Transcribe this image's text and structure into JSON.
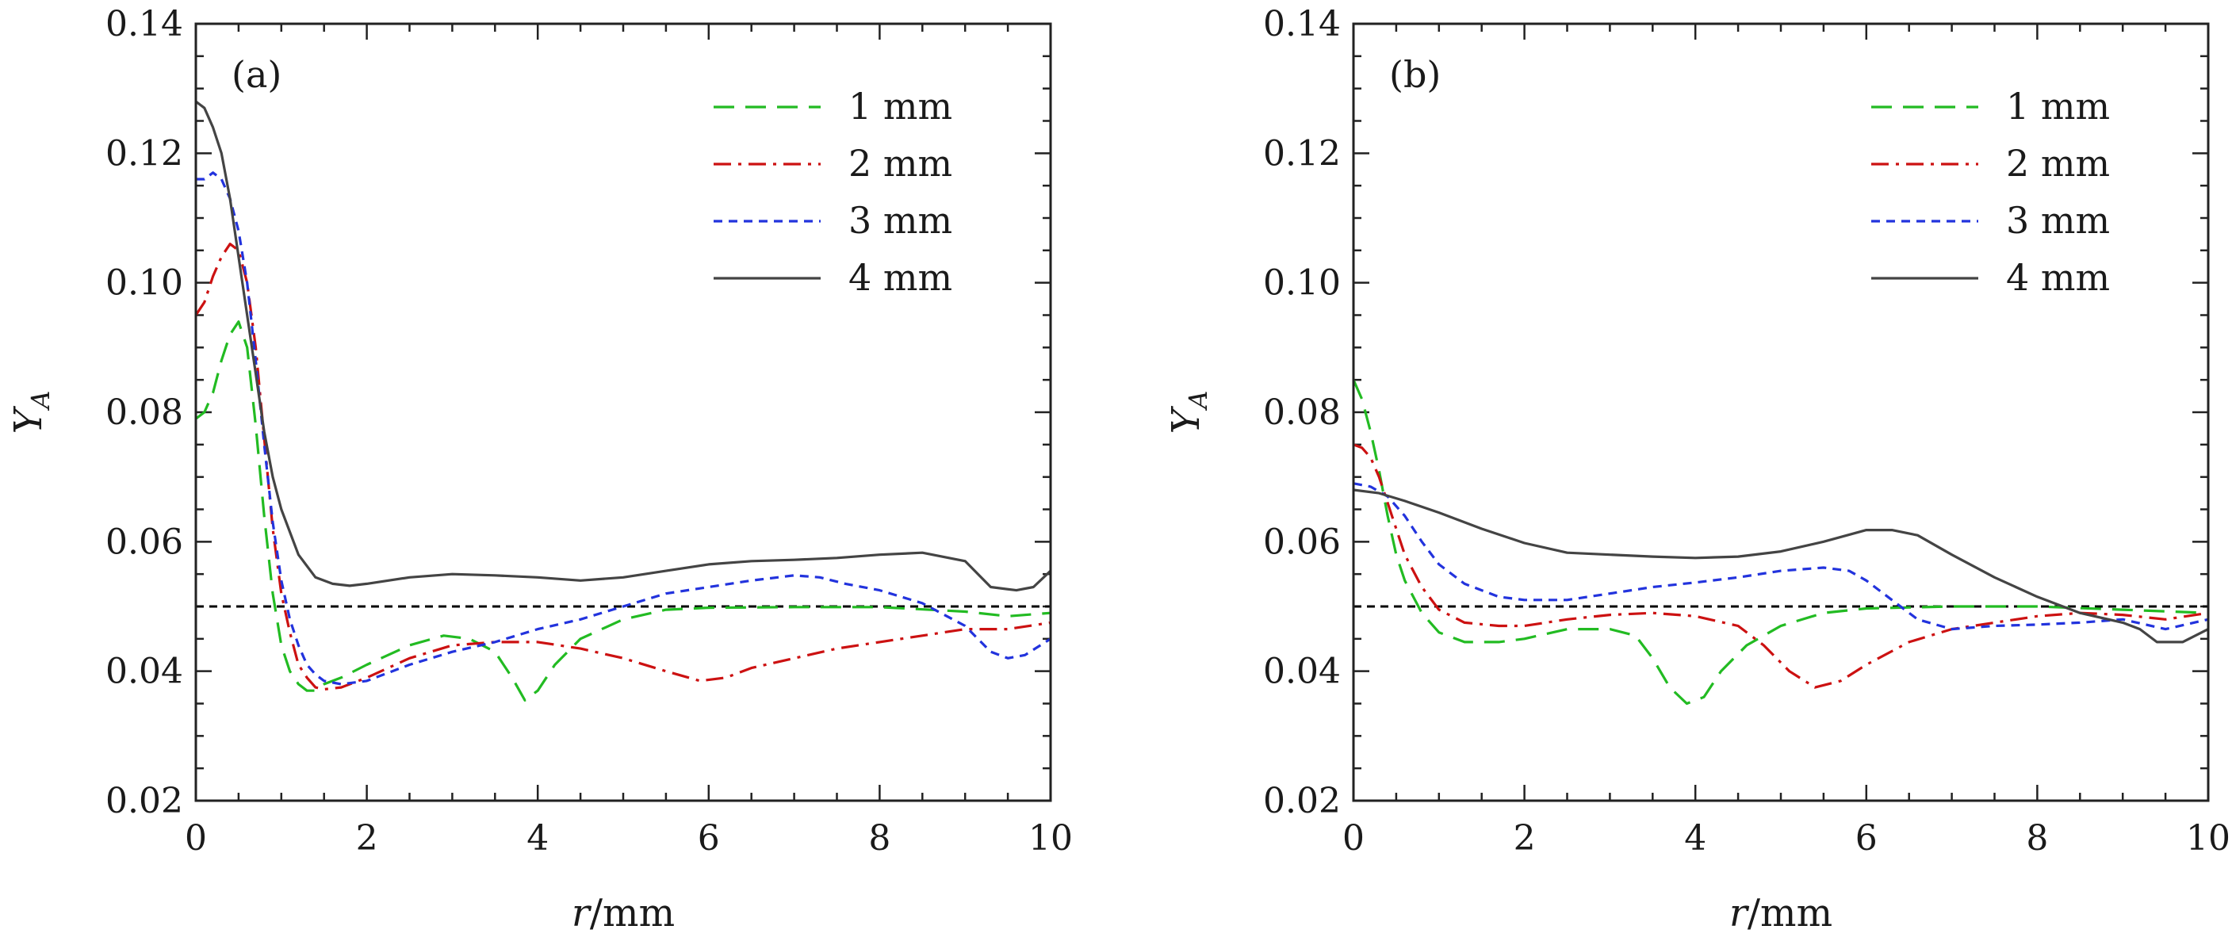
{
  "chart_data": [
    {
      "type": "line",
      "panel_label": "(a)",
      "xlabel_var": "r",
      "xlabel_unit": "/mm",
      "ylabel_var": "Y",
      "ylabel_sub": "A",
      "xlim": [
        0,
        10
      ],
      "ylim": [
        0.02,
        0.14
      ],
      "xticks": [
        "0",
        "2",
        "4",
        "6",
        "8",
        "10"
      ],
      "yticks": [
        "0.02",
        "0.04",
        "0.06",
        "0.08",
        "0.10",
        "0.12",
        "0.14"
      ],
      "legend_position": "top-right",
      "grid": false,
      "reference_line": {
        "y": 0.05,
        "style": "dotted",
        "color": "#000000"
      },
      "series": [
        {
          "name": "1 mm",
          "color": "#22bb22",
          "dash": "dashed",
          "points": [
            [
              0,
              0.079
            ],
            [
              0.1,
              0.08
            ],
            [
              0.2,
              0.083
            ],
            [
              0.3,
              0.088
            ],
            [
              0.4,
              0.092
            ],
            [
              0.5,
              0.094
            ],
            [
              0.6,
              0.09
            ],
            [
              0.7,
              0.078
            ],
            [
              0.8,
              0.064
            ],
            [
              0.9,
              0.052
            ],
            [
              1.0,
              0.044
            ],
            [
              1.1,
              0.04
            ],
            [
              1.2,
              0.038
            ],
            [
              1.3,
              0.037
            ],
            [
              1.4,
              0.037
            ],
            [
              1.5,
              0.038
            ],
            [
              1.7,
              0.039
            ],
            [
              2.0,
              0.041
            ],
            [
              2.5,
              0.044
            ],
            [
              2.9,
              0.0455
            ],
            [
              3.2,
              0.045
            ],
            [
              3.5,
              0.043
            ],
            [
              3.7,
              0.039
            ],
            [
              3.85,
              0.0355
            ],
            [
              4.0,
              0.037
            ],
            [
              4.2,
              0.041
            ],
            [
              4.5,
              0.045
            ],
            [
              5.0,
              0.048
            ],
            [
              5.5,
              0.0495
            ],
            [
              6.0,
              0.0498
            ],
            [
              7.0,
              0.0499
            ],
            [
              8.0,
              0.0499
            ],
            [
              9.0,
              0.0492
            ],
            [
              9.5,
              0.0485
            ],
            [
              10,
              0.049
            ]
          ]
        },
        {
          "name": "2 mm",
          "color": "#cc1111",
          "dash": "dashdot",
          "points": [
            [
              0,
              0.095
            ],
            [
              0.1,
              0.097
            ],
            [
              0.2,
              0.101
            ],
            [
              0.3,
              0.104
            ],
            [
              0.4,
              0.106
            ],
            [
              0.5,
              0.105
            ],
            [
              0.6,
              0.1
            ],
            [
              0.7,
              0.09
            ],
            [
              0.8,
              0.076
            ],
            [
              0.9,
              0.062
            ],
            [
              1.0,
              0.052
            ],
            [
              1.1,
              0.046
            ],
            [
              1.2,
              0.041
            ],
            [
              1.3,
              0.039
            ],
            [
              1.4,
              0.0375
            ],
            [
              1.5,
              0.0372
            ],
            [
              1.7,
              0.0375
            ],
            [
              2.0,
              0.039
            ],
            [
              2.5,
              0.042
            ],
            [
              3.0,
              0.044
            ],
            [
              3.5,
              0.0445
            ],
            [
              4.0,
              0.0445
            ],
            [
              4.5,
              0.0435
            ],
            [
              5.0,
              0.042
            ],
            [
              5.5,
              0.04
            ],
            [
              5.9,
              0.0385
            ],
            [
              6.2,
              0.039
            ],
            [
              6.5,
              0.0405
            ],
            [
              7.0,
              0.042
            ],
            [
              7.5,
              0.0435
            ],
            [
              8.0,
              0.0445
            ],
            [
              8.5,
              0.0455
            ],
            [
              9.0,
              0.0465
            ],
            [
              9.5,
              0.0465
            ],
            [
              10,
              0.0475
            ]
          ]
        },
        {
          "name": "3 mm",
          "color": "#2233dd",
          "dash": "dotted",
          "points": [
            [
              0,
              0.116
            ],
            [
              0.1,
              0.116
            ],
            [
              0.2,
              0.117
            ],
            [
              0.3,
              0.116
            ],
            [
              0.4,
              0.113
            ],
            [
              0.5,
              0.108
            ],
            [
              0.6,
              0.1
            ],
            [
              0.7,
              0.088
            ],
            [
              0.8,
              0.075
            ],
            [
              0.9,
              0.063
            ],
            [
              1.0,
              0.054
            ],
            [
              1.1,
              0.048
            ],
            [
              1.2,
              0.044
            ],
            [
              1.3,
              0.041
            ],
            [
              1.4,
              0.0395
            ],
            [
              1.5,
              0.0385
            ],
            [
              1.7,
              0.038
            ],
            [
              2.0,
              0.0385
            ],
            [
              2.5,
              0.041
            ],
            [
              3.0,
              0.043
            ],
            [
              3.5,
              0.0445
            ],
            [
              4.0,
              0.0465
            ],
            [
              4.5,
              0.048
            ],
            [
              5.0,
              0.05
            ],
            [
              5.5,
              0.052
            ],
            [
              6.0,
              0.053
            ],
            [
              6.5,
              0.054
            ],
            [
              7.0,
              0.0548
            ],
            [
              7.3,
              0.0545
            ],
            [
              7.6,
              0.0535
            ],
            [
              8.0,
              0.0525
            ],
            [
              8.5,
              0.0505
            ],
            [
              9.0,
              0.047
            ],
            [
              9.3,
              0.043
            ],
            [
              9.5,
              0.042
            ],
            [
              9.7,
              0.0425
            ],
            [
              10,
              0.045
            ]
          ]
        },
        {
          "name": "4 mm",
          "color": "#444444",
          "dash": "solid",
          "points": [
            [
              0,
              0.128
            ],
            [
              0.1,
              0.127
            ],
            [
              0.2,
              0.124
            ],
            [
              0.3,
              0.12
            ],
            [
              0.4,
              0.113
            ],
            [
              0.5,
              0.104
            ],
            [
              0.6,
              0.095
            ],
            [
              0.7,
              0.086
            ],
            [
              0.8,
              0.077
            ],
            [
              0.9,
              0.07
            ],
            [
              1.0,
              0.065
            ],
            [
              1.2,
              0.058
            ],
            [
              1.4,
              0.0545
            ],
            [
              1.6,
              0.0535
            ],
            [
              1.8,
              0.0532
            ],
            [
              2.0,
              0.0535
            ],
            [
              2.5,
              0.0545
            ],
            [
              3.0,
              0.055
            ],
            [
              3.5,
              0.0548
            ],
            [
              4.0,
              0.0545
            ],
            [
              4.5,
              0.054
            ],
            [
              5.0,
              0.0545
            ],
            [
              5.5,
              0.0555
            ],
            [
              6.0,
              0.0565
            ],
            [
              6.5,
              0.057
            ],
            [
              7.0,
              0.0572
            ],
            [
              7.5,
              0.0575
            ],
            [
              8.0,
              0.058
            ],
            [
              8.5,
              0.0583
            ],
            [
              9.0,
              0.057
            ],
            [
              9.3,
              0.053
            ],
            [
              9.6,
              0.0525
            ],
            [
              9.8,
              0.053
            ],
            [
              10,
              0.0555
            ]
          ]
        }
      ]
    },
    {
      "type": "line",
      "panel_label": "(b)",
      "xlabel_var": "r",
      "xlabel_unit": "/mm",
      "ylabel_var": "Y",
      "ylabel_sub": "A",
      "xlim": [
        0,
        10
      ],
      "ylim": [
        0.02,
        0.14
      ],
      "xticks": [
        "0",
        "2",
        "4",
        "6",
        "8",
        "10"
      ],
      "yticks": [
        "0.02",
        "0.04",
        "0.06",
        "0.08",
        "0.10",
        "0.12",
        "0.14"
      ],
      "legend_position": "top-right",
      "grid": false,
      "reference_line": {
        "y": 0.05,
        "style": "dotted",
        "color": "#000000"
      },
      "series": [
        {
          "name": "1 mm",
          "color": "#22bb22",
          "dash": "dashed",
          "points": [
            [
              0,
              0.085
            ],
            [
              0.1,
              0.082
            ],
            [
              0.2,
              0.077
            ],
            [
              0.3,
              0.071
            ],
            [
              0.4,
              0.064
            ],
            [
              0.5,
              0.058
            ],
            [
              0.6,
              0.054
            ],
            [
              0.8,
              0.049
            ],
            [
              1.0,
              0.046
            ],
            [
              1.3,
              0.0445
            ],
            [
              1.7,
              0.0445
            ],
            [
              2.0,
              0.045
            ],
            [
              2.5,
              0.0465
            ],
            [
              3.0,
              0.0465
            ],
            [
              3.3,
              0.0455
            ],
            [
              3.5,
              0.042
            ],
            [
              3.7,
              0.0375
            ],
            [
              3.9,
              0.035
            ],
            [
              4.1,
              0.036
            ],
            [
              4.3,
              0.04
            ],
            [
              4.6,
              0.044
            ],
            [
              5.0,
              0.047
            ],
            [
              5.5,
              0.049
            ],
            [
              6.0,
              0.0497
            ],
            [
              7.0,
              0.05
            ],
            [
              8.0,
              0.05
            ],
            [
              9.0,
              0.0495
            ],
            [
              10,
              0.049
            ]
          ]
        },
        {
          "name": "2 mm",
          "color": "#cc1111",
          "dash": "dashdot",
          "points": [
            [
              0,
              0.075
            ],
            [
              0.1,
              0.0745
            ],
            [
              0.2,
              0.073
            ],
            [
              0.3,
              0.07
            ],
            [
              0.4,
              0.066
            ],
            [
              0.5,
              0.062
            ],
            [
              0.6,
              0.058
            ],
            [
              0.8,
              0.053
            ],
            [
              1.0,
              0.0495
            ],
            [
              1.3,
              0.0475
            ],
            [
              1.7,
              0.047
            ],
            [
              2.0,
              0.047
            ],
            [
              2.5,
              0.048
            ],
            [
              3.0,
              0.0487
            ],
            [
              3.5,
              0.049
            ],
            [
              4.0,
              0.0485
            ],
            [
              4.5,
              0.047
            ],
            [
              4.8,
              0.044
            ],
            [
              5.1,
              0.04
            ],
            [
              5.4,
              0.0375
            ],
            [
              5.7,
              0.0385
            ],
            [
              6.0,
              0.041
            ],
            [
              6.5,
              0.0445
            ],
            [
              7.0,
              0.0465
            ],
            [
              7.5,
              0.0475
            ],
            [
              8.0,
              0.0485
            ],
            [
              8.5,
              0.049
            ],
            [
              9.0,
              0.0487
            ],
            [
              9.5,
              0.048
            ],
            [
              10,
              0.049
            ]
          ]
        },
        {
          "name": "3 mm",
          "color": "#2233dd",
          "dash": "dotted",
          "points": [
            [
              0,
              0.069
            ],
            [
              0.2,
              0.0685
            ],
            [
              0.4,
              0.067
            ],
            [
              0.6,
              0.064
            ],
            [
              0.8,
              0.06
            ],
            [
              1.0,
              0.0565
            ],
            [
              1.3,
              0.0535
            ],
            [
              1.7,
              0.0515
            ],
            [
              2.0,
              0.051
            ],
            [
              2.5,
              0.051
            ],
            [
              3.0,
              0.052
            ],
            [
              3.5,
              0.053
            ],
            [
              4.0,
              0.0537
            ],
            [
              4.5,
              0.0545
            ],
            [
              5.0,
              0.0555
            ],
            [
              5.5,
              0.056
            ],
            [
              5.8,
              0.0555
            ],
            [
              6.0,
              0.054
            ],
            [
              6.3,
              0.051
            ],
            [
              6.6,
              0.048
            ],
            [
              7.0,
              0.0465
            ],
            [
              7.5,
              0.047
            ],
            [
              8.0,
              0.0472
            ],
            [
              8.5,
              0.0475
            ],
            [
              9.0,
              0.048
            ],
            [
              9.5,
              0.0465
            ],
            [
              10,
              0.048
            ]
          ]
        },
        {
          "name": "4 mm",
          "color": "#444444",
          "dash": "solid",
          "points": [
            [
              0,
              0.068
            ],
            [
              0.3,
              0.0675
            ],
            [
              0.6,
              0.0663
            ],
            [
              1.0,
              0.0645
            ],
            [
              1.5,
              0.062
            ],
            [
              2.0,
              0.0598
            ],
            [
              2.5,
              0.0583
            ],
            [
              3.0,
              0.058
            ],
            [
              3.5,
              0.0577
            ],
            [
              4.0,
              0.0575
            ],
            [
              4.5,
              0.0577
            ],
            [
              5.0,
              0.0585
            ],
            [
              5.5,
              0.06
            ],
            [
              6.0,
              0.0618
            ],
            [
              6.3,
              0.0618
            ],
            [
              6.6,
              0.061
            ],
            [
              7.0,
              0.058
            ],
            [
              7.5,
              0.0545
            ],
            [
              8.0,
              0.0515
            ],
            [
              8.5,
              0.049
            ],
            [
              9.0,
              0.0475
            ],
            [
              9.2,
              0.0465
            ],
            [
              9.4,
              0.0445
            ],
            [
              9.7,
              0.0445
            ],
            [
              10,
              0.0465
            ]
          ]
        }
      ]
    }
  ]
}
